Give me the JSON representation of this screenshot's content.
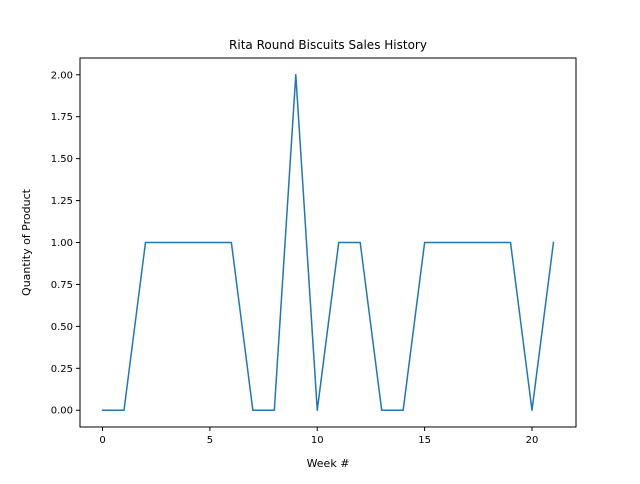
{
  "chart_data": {
    "type": "line",
    "title": "Rita Round Biscuits Sales History",
    "xlabel": "Week #",
    "ylabel": "Quantity of Product",
    "x": [
      0,
      1,
      2,
      3,
      4,
      5,
      6,
      7,
      8,
      9,
      10,
      11,
      12,
      13,
      14,
      15,
      16,
      17,
      18,
      19,
      20,
      21
    ],
    "series": [
      {
        "values": [
          0,
          0,
          1,
          1,
          1,
          1,
          1,
          0,
          0,
          2,
          0,
          1,
          1,
          0,
          0,
          1,
          1,
          1,
          1,
          1,
          0,
          1
        ],
        "color": "#1f77b4"
      }
    ],
    "xlim": [
      -1.05,
      22.05
    ],
    "ylim": [
      -0.1,
      2.1
    ],
    "xticks": [
      0,
      5,
      10,
      15,
      20
    ],
    "xtick_labels": [
      "0",
      "5",
      "10",
      "15",
      "20"
    ],
    "yticks": [
      0,
      0.25,
      0.5,
      0.75,
      1,
      1.25,
      1.5,
      1.75,
      2
    ],
    "ytick_labels": [
      "0.00",
      "0.25",
      "0.50",
      "0.75",
      "1.00",
      "1.25",
      "1.50",
      "1.75",
      "2.00"
    ],
    "grid": false,
    "legend": "none"
  }
}
